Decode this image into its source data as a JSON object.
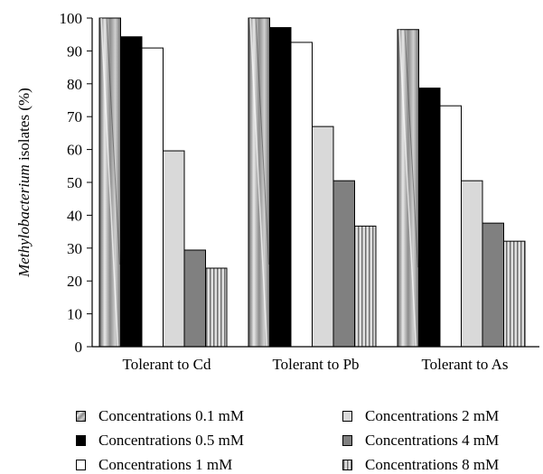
{
  "chart_data": {
    "type": "bar",
    "title": "",
    "xlabel": "",
    "ylabel_italic": "Methylobacterium",
    "ylabel_rest": " isolates (%)",
    "ylim": [
      0,
      100
    ],
    "yticks": [
      "0",
      "10",
      "20",
      "30",
      "40",
      "50",
      "60",
      "70",
      "80",
      "90",
      "100"
    ],
    "grid": false,
    "legend_position": "bottom",
    "categories": [
      "Tolerant to Cd",
      "Tolerant to Pb",
      "Tolerant to As"
    ],
    "series": [
      {
        "name": "Concentrations 0.1 mM",
        "values": [
          100,
          100,
          96.5
        ],
        "pattern": "gradient-gray"
      },
      {
        "name": "Concentrations 0.5 mM",
        "values": [
          94.3,
          97.1,
          78.7
        ],
        "pattern": "solid-black"
      },
      {
        "name": "Concentrations 1 mM",
        "values": [
          90.9,
          92.6,
          73.3
        ],
        "pattern": "white"
      },
      {
        "name": "Concentrations 2 mM",
        "values": [
          59.6,
          67,
          50.5
        ],
        "pattern": "light-gray"
      },
      {
        "name": "Concentrations 4 mM",
        "values": [
          29.4,
          50.5,
          37.6
        ],
        "pattern": "dark-gray"
      },
      {
        "name": "Concentrations 8 mM",
        "values": [
          23.9,
          36.7,
          32.1
        ],
        "pattern": "vertical-stripes"
      }
    ]
  },
  "colors": {
    "light_gray": "#d9d9d9",
    "dark_gray": "#808080",
    "black": "#000000",
    "white": "#ffffff"
  }
}
